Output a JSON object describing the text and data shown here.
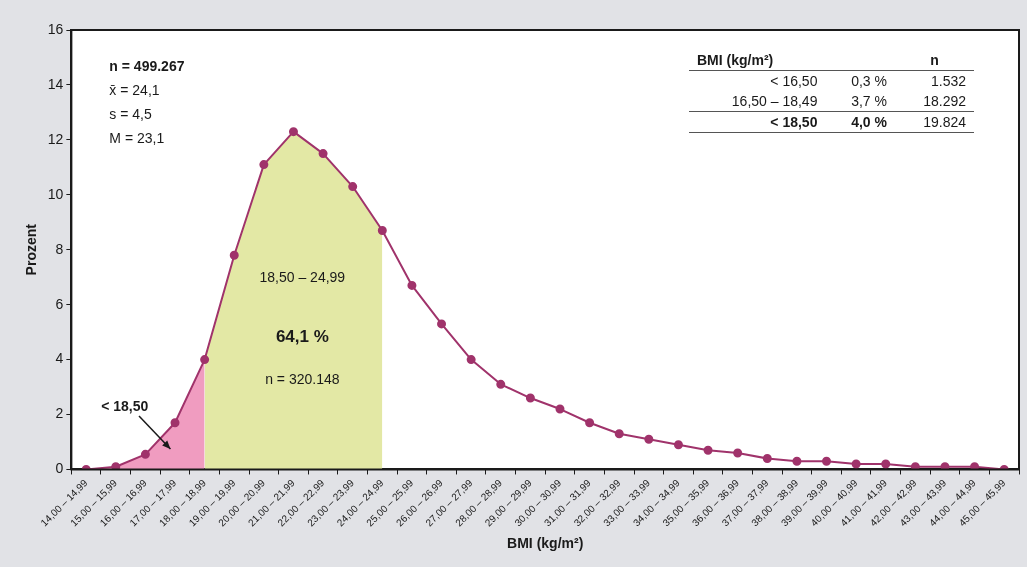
{
  "chart_data": {
    "type": "line",
    "xlabel": "BMI (kg/m²)",
    "ylabel": "Prozent",
    "categories": [
      "14,00 – 14,99",
      "15,00 – 15,99",
      "16,00 – 16,99",
      "17,00 – 17,99",
      "18,00 – 18,99",
      "19,00 – 19,99",
      "20,00 – 20,99",
      "21,00 – 21,99",
      "22,00 – 22,99",
      "23,00 – 23,99",
      "24,00 – 24,99",
      "25,00 – 25,99",
      "26,00 – 26,99",
      "27,00 – 27,99",
      "28,00 – 28,99",
      "29,00 – 29,99",
      "30,00 – 30,99",
      "31,00 – 31,99",
      "32,00 – 32,99",
      "33,00 – 33,99",
      "34,00 – 34,99",
      "35,00 – 35,99",
      "36,00 – 36,99",
      "37,00 – 37,99",
      "38,00 – 38,99",
      "39,00 – 39,99",
      "40,00 – 40,99",
      "41,00 – 41,99",
      "42,00 – 42,99",
      "43,00 – 43,99",
      "44,00 – 44,99",
      "45,00 – 45,99"
    ],
    "series": [
      {
        "type": "area",
        "marker": "none",
        "color": "#f09cc0",
        "values": [
          0.0,
          0.1,
          0.55,
          1.7,
          4.0,
          null,
          null,
          null,
          null,
          null,
          null,
          null,
          null,
          null,
          null,
          null,
          null,
          null,
          null,
          null,
          null,
          null,
          null,
          null,
          null,
          null,
          null,
          null,
          null,
          null,
          null,
          null
        ]
      },
      {
        "type": "area",
        "marker": "none",
        "color": "#e3e8a5",
        "values": [
          null,
          null,
          null,
          null,
          4.0,
          7.8,
          11.1,
          12.3,
          11.5,
          10.3,
          8.7,
          null,
          null,
          null,
          null,
          null,
          null,
          null,
          null,
          null,
          null,
          null,
          null,
          null,
          null,
          null,
          null,
          null,
          null,
          null,
          null,
          null
        ]
      },
      {
        "marker": "circle",
        "color": "#a0336b",
        "values": [
          0.0,
          0.1,
          0.55,
          1.7,
          4.0,
          7.8,
          11.1,
          12.3,
          11.5,
          10.3,
          8.7,
          6.7,
          5.3,
          4.0,
          3.1,
          2.6,
          2.2,
          1.7,
          1.3,
          1.1,
          0.9,
          0.7,
          0.6,
          0.4,
          0.3,
          0.3,
          0.2,
          0.2,
          0.1,
          0.1,
          0.1,
          0.0
        ]
      }
    ],
    "ylim": [
      0,
      16
    ],
    "yticks": [
      0,
      2,
      4,
      6,
      8,
      10,
      12,
      14,
      16
    ],
    "grid": false,
    "legend": false,
    "line_style": "solid",
    "annotations": [
      "n = 499.267",
      "x̄  = 24,1",
      "s  = 4,5",
      "M = 23,1",
      "18,50 – 24,99",
      "64,1 %",
      "n = 320.148",
      "< 18,50",
      "BMI (kg/m²)",
      "n",
      "< 16,50",
      "0,3 %",
      "1.532",
      "16,50 – 18,49",
      "3,7 %",
      "18.292",
      "< 18,50",
      "4,0 %",
      "19.824"
    ]
  }
}
